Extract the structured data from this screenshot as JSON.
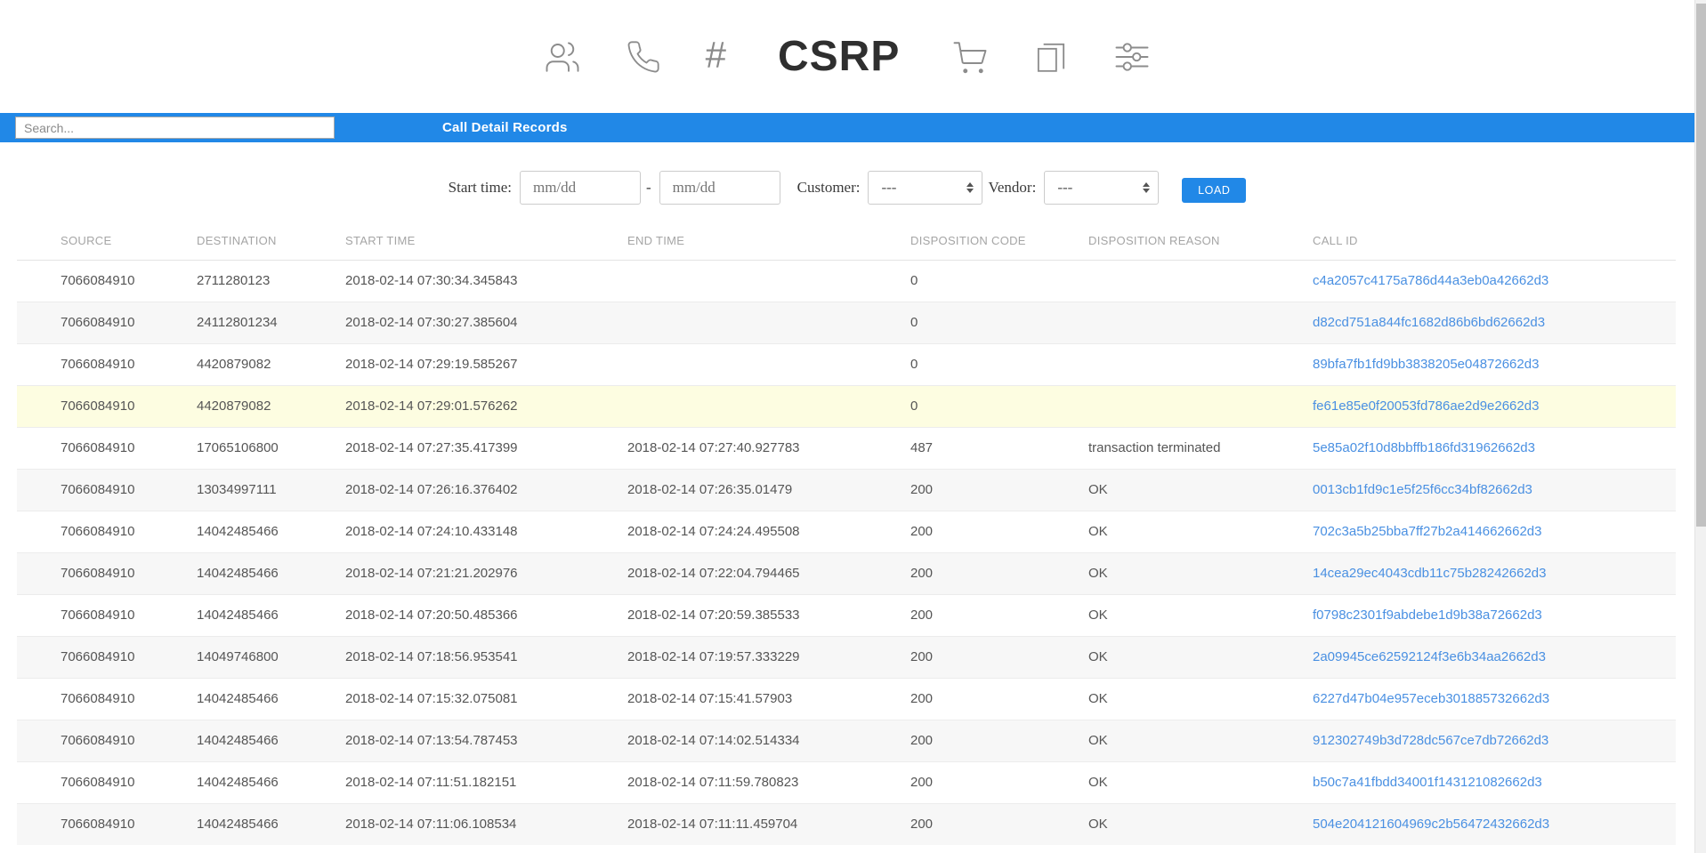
{
  "header": {
    "title": "CSRP",
    "hash_glyph": "#",
    "icons_left": [
      "users-icon",
      "phone-icon",
      "hash-icon"
    ],
    "icons_right": [
      "cart-icon",
      "copy-icon",
      "sliders-icon"
    ]
  },
  "toolbar": {
    "search_placeholder": "Search...",
    "section_title": "Call Detail Records"
  },
  "filters": {
    "start_time_label": "Start time:",
    "date_from_placeholder": "mm/dd",
    "date_separator": "-",
    "date_to_placeholder": "mm/dd",
    "customer_label": "Customer:",
    "customer_value": "---",
    "vendor_label": "Vendor:",
    "vendor_value": "---",
    "load_button": "LOAD"
  },
  "table": {
    "columns": [
      "SOURCE",
      "DESTINATION",
      "START TIME",
      "END TIME",
      "DISPOSITION CODE",
      "DISPOSITION REASON",
      "CALL ID"
    ],
    "rows": [
      {
        "source": "7066084910",
        "destination": "2711280123",
        "start_time": "2018-02-14 07:30:34.345843",
        "end_time": "",
        "disposition_code": "0",
        "disposition_reason": "",
        "call_id": "c4a2057c4175a786d44a3eb0a42662d3",
        "highlighted": false
      },
      {
        "source": "7066084910",
        "destination": "24112801234",
        "start_time": "2018-02-14 07:30:27.385604",
        "end_time": "",
        "disposition_code": "0",
        "disposition_reason": "",
        "call_id": "d82cd751a844fc1682d86b6bd62662d3",
        "highlighted": false
      },
      {
        "source": "7066084910",
        "destination": "4420879082",
        "start_time": "2018-02-14 07:29:19.585267",
        "end_time": "",
        "disposition_code": "0",
        "disposition_reason": "",
        "call_id": "89bfa7fb1fd9bb3838205e04872662d3",
        "highlighted": false
      },
      {
        "source": "7066084910",
        "destination": "4420879082",
        "start_time": "2018-02-14 07:29:01.576262",
        "end_time": "",
        "disposition_code": "0",
        "disposition_reason": "",
        "call_id": "fe61e85e0f20053fd786ae2d9e2662d3",
        "highlighted": true
      },
      {
        "source": "7066084910",
        "destination": "17065106800",
        "start_time": "2018-02-14 07:27:35.417399",
        "end_time": "2018-02-14 07:27:40.927783",
        "disposition_code": "487",
        "disposition_reason": "transaction terminated",
        "call_id": "5e85a02f10d8bbffb186fd31962662d3",
        "highlighted": false
      },
      {
        "source": "7066084910",
        "destination": "13034997111",
        "start_time": "2018-02-14 07:26:16.376402",
        "end_time": "2018-02-14 07:26:35.01479",
        "disposition_code": "200",
        "disposition_reason": "OK",
        "call_id": "0013cb1fd9c1e5f25f6cc34bf82662d3",
        "highlighted": false
      },
      {
        "source": "7066084910",
        "destination": "14042485466",
        "start_time": "2018-02-14 07:24:10.433148",
        "end_time": "2018-02-14 07:24:24.495508",
        "disposition_code": "200",
        "disposition_reason": "OK",
        "call_id": "702c3a5b25bba7ff27b2a414662662d3",
        "highlighted": false
      },
      {
        "source": "7066084910",
        "destination": "14042485466",
        "start_time": "2018-02-14 07:21:21.202976",
        "end_time": "2018-02-14 07:22:04.794465",
        "disposition_code": "200",
        "disposition_reason": "OK",
        "call_id": "14cea29ec4043cdb11c75b28242662d3",
        "highlighted": false
      },
      {
        "source": "7066084910",
        "destination": "14042485466",
        "start_time": "2018-02-14 07:20:50.485366",
        "end_time": "2018-02-14 07:20:59.385533",
        "disposition_code": "200",
        "disposition_reason": "OK",
        "call_id": "f0798c2301f9abdebe1d9b38a72662d3",
        "highlighted": false
      },
      {
        "source": "7066084910",
        "destination": "14049746800",
        "start_time": "2018-02-14 07:18:56.953541",
        "end_time": "2018-02-14 07:19:57.333229",
        "disposition_code": "200",
        "disposition_reason": "OK",
        "call_id": "2a09945ce62592124f3e6b34aa2662d3",
        "highlighted": false
      },
      {
        "source": "7066084910",
        "destination": "14042485466",
        "start_time": "2018-02-14 07:15:32.075081",
        "end_time": "2018-02-14 07:15:41.57903",
        "disposition_code": "200",
        "disposition_reason": "OK",
        "call_id": "6227d47b04e957eceb301885732662d3",
        "highlighted": false
      },
      {
        "source": "7066084910",
        "destination": "14042485466",
        "start_time": "2018-02-14 07:13:54.787453",
        "end_time": "2018-02-14 07:14:02.514334",
        "disposition_code": "200",
        "disposition_reason": "OK",
        "call_id": "912302749b3d728dc567ce7db72662d3",
        "highlighted": false
      },
      {
        "source": "7066084910",
        "destination": "14042485466",
        "start_time": "2018-02-14 07:11:51.182151",
        "end_time": "2018-02-14 07:11:59.780823",
        "disposition_code": "200",
        "disposition_reason": "OK",
        "call_id": "b50c7a41fbdd34001f143121082662d3",
        "highlighted": false
      },
      {
        "source": "7066084910",
        "destination": "14042485466",
        "start_time": "2018-02-14 07:11:06.108534",
        "end_time": "2018-02-14 07:11:11.459704",
        "disposition_code": "200",
        "disposition_reason": "OK",
        "call_id": "504e204121604969c2b56472432662d3",
        "highlighted": false
      }
    ]
  },
  "colors": {
    "accent": "#2188e7",
    "link": "#4a90e2",
    "highlight_row": "#fdfde1",
    "stripe_row": "#f7f7f7"
  }
}
